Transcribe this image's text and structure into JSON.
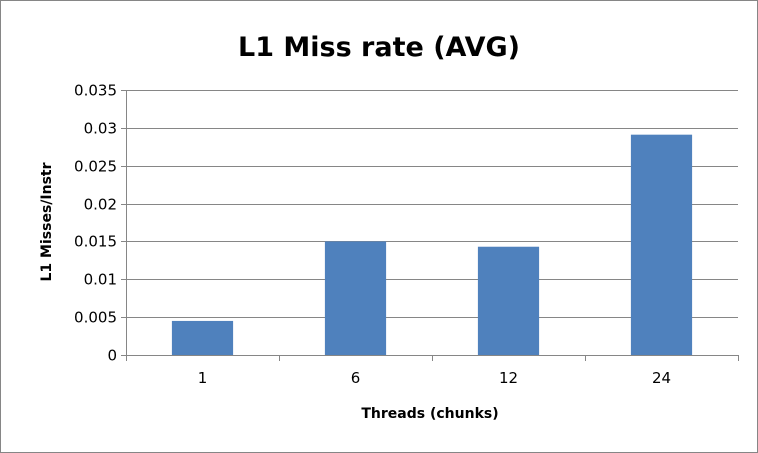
{
  "chart_data": {
    "type": "bar",
    "title": "L1 Miss rate (AVG)",
    "xlabel": "Threads (chunks)",
    "ylabel": "L1 Misses/Instr",
    "categories": [
      "1",
      "6",
      "12",
      "24"
    ],
    "values": [
      0.0045,
      0.015,
      0.0143,
      0.0291
    ],
    "ylim": [
      0,
      0.035
    ],
    "yticks": [
      "0",
      "0.005",
      "0.01",
      "0.015",
      "0.02",
      "0.025",
      "0.03",
      "0.035"
    ],
    "ytick_values": [
      0,
      0.005,
      0.01,
      0.015,
      0.02,
      0.025,
      0.03,
      0.035
    ],
    "grid": true,
    "legend": "none",
    "bar_color": "#4f81bd",
    "grid_color": "#868686"
  }
}
